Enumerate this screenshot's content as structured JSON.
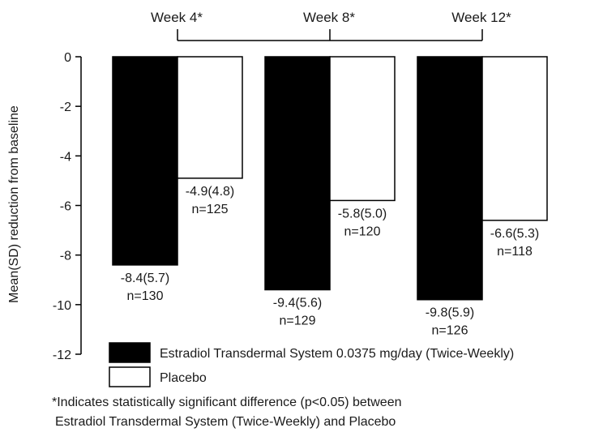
{
  "chart_data": {
    "type": "bar",
    "categories": [
      "Week 4*",
      "Week 8*",
      "Week 12*"
    ],
    "ylabel": "Mean(SD) reduction from baseline",
    "ylim": [
      -12,
      0
    ],
    "yticks": [
      "0",
      "-2",
      "-4",
      "-6",
      "-8",
      "-10",
      "-12"
    ],
    "grid": false,
    "legend_position": "bottom",
    "series": [
      {
        "name": "Estradiol Transdermal System 0.0375 mg/day (Twice-Weekly)",
        "color": "#000000",
        "values": [
          -8.4,
          -9.4,
          -9.8
        ],
        "labels": [
          "-8.4(5.7)",
          "-9.4(5.6)",
          "-9.8(5.9)"
        ],
        "n_labels": [
          "n=130",
          "n=129",
          "n=126"
        ]
      },
      {
        "name": "Placebo",
        "color": "#ffffff",
        "values": [
          -4.9,
          -5.8,
          -6.6
        ],
        "labels": [
          "-4.9(4.8)",
          "-5.8(5.0)",
          "-6.6(5.3)"
        ],
        "n_labels": [
          "n=125",
          "n=120",
          "n=118"
        ]
      }
    ]
  },
  "footnote": {
    "line1": "*Indicates statistically significant difference (p<0.05) between",
    "line2": "Estradiol Transdermal System (Twice-Weekly) and Placebo"
  }
}
